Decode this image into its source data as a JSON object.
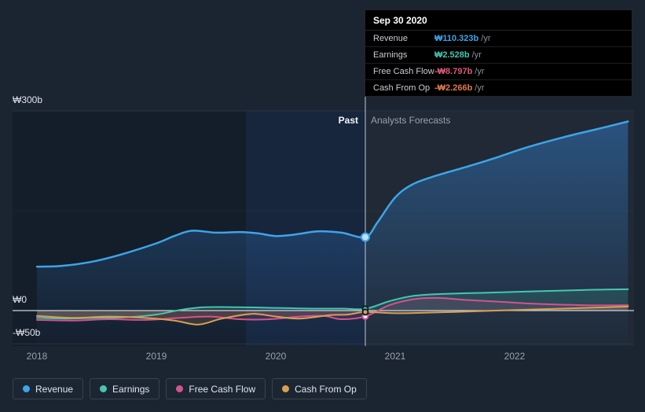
{
  "tooltip": {
    "date": "Sep 30 2020",
    "rows": [
      {
        "label": "Revenue",
        "value": "₩110.323b",
        "suffix": "/yr",
        "value_color": "#3da5e8"
      },
      {
        "label": "Earnings",
        "value": "₩2.528b",
        "suffix": "/yr",
        "value_color": "#45c6b1"
      },
      {
        "label": "Free Cash Flow",
        "value": "-₩8.797b",
        "suffix": "/yr",
        "value_color": "#e0587a"
      },
      {
        "label": "Cash From Op",
        "value": "-₩2.266b",
        "suffix": "/yr",
        "value_color": "#df7a4a"
      }
    ]
  },
  "legend": [
    {
      "label": "Revenue",
      "color": "#3da5e8"
    },
    {
      "label": "Earnings",
      "color": "#45c6b1"
    },
    {
      "label": "Free Cash Flow",
      "color": "#d4538f"
    },
    {
      "label": "Cash From Op",
      "color": "#d9a050"
    }
  ],
  "chart_data": {
    "type": "line",
    "title": "",
    "x_range": [
      2018,
      2023
    ],
    "ylim": [
      -50,
      300
    ],
    "grid": true,
    "legend_position": "bottom",
    "y_ticks": [
      {
        "value": 300,
        "label": "₩300b"
      },
      {
        "value": 0,
        "label": "₩0"
      },
      {
        "value": -50,
        "label": "-₩50b"
      }
    ],
    "x_ticks": [
      {
        "value": 2018,
        "label": "2018"
      },
      {
        "value": 2019,
        "label": "2019"
      },
      {
        "value": 2020,
        "label": "2020"
      },
      {
        "value": 2021,
        "label": "2021"
      },
      {
        "value": 2022,
        "label": "2022"
      }
    ],
    "divider": {
      "x": 2020.75,
      "past_label": "Past",
      "forecast_label": "Analysts Forecasts"
    },
    "highlight_band": {
      "from": 2019.75,
      "to": 2020.75
    },
    "series": [
      {
        "name": "Revenue",
        "color": "#3da5e8",
        "marker": 110.323,
        "area": "gradient-bottom",
        "x": [
          2018.0,
          2018.2,
          2018.45,
          2018.7,
          2019.0,
          2019.15,
          2019.3,
          2019.5,
          2019.7,
          2019.85,
          2020.0,
          2020.15,
          2020.35,
          2020.55,
          2020.75,
          2020.85,
          2021.0,
          2021.15,
          2021.35,
          2021.6,
          2021.85,
          2022.1,
          2022.4,
          2022.7,
          2022.95
        ],
        "values": [
          66,
          67,
          73,
          84,
          101,
          112,
          120,
          117,
          118,
          116,
          112,
          114,
          119,
          117,
          110.323,
          132,
          170,
          190,
          203,
          216,
          230,
          245,
          260,
          273,
          284
        ]
      },
      {
        "name": "Earnings",
        "color": "#45c6b1",
        "marker": 2.528,
        "area": "zero",
        "x": [
          2018.0,
          2018.25,
          2018.5,
          2018.75,
          2019.0,
          2019.2,
          2019.4,
          2019.7,
          2020.0,
          2020.3,
          2020.55,
          2020.75,
          2020.95,
          2021.15,
          2021.4,
          2021.8,
          2022.2,
          2022.6,
          2022.95
        ],
        "values": [
          -11,
          -12,
          -11,
          -10,
          -6,
          1,
          5,
          5,
          4,
          3,
          3,
          2.528,
          14,
          22,
          25,
          27,
          29,
          31,
          32
        ]
      },
      {
        "name": "Free Cash Flow",
        "color": "#d4538f",
        "marker": -8.797,
        "area": "zero",
        "x": [
          2018.0,
          2018.3,
          2018.6,
          2018.9,
          2019.2,
          2019.45,
          2019.7,
          2019.95,
          2020.2,
          2020.4,
          2020.55,
          2020.75,
          2020.95,
          2021.15,
          2021.35,
          2021.6,
          2021.9,
          2022.2,
          2022.6,
          2022.95
        ],
        "values": [
          -14,
          -15,
          -13,
          -14,
          -11,
          -9,
          -13,
          -13,
          -9,
          -8,
          -13,
          -8.797,
          8,
          17,
          19,
          16,
          13,
          10,
          8,
          8
        ]
      },
      {
        "name": "Cash From Op",
        "color": "#d9a050",
        "marker": -2.266,
        "area": "zero",
        "x": [
          2018.0,
          2018.3,
          2018.6,
          2018.9,
          2019.15,
          2019.35,
          2019.55,
          2019.8,
          2020.0,
          2020.2,
          2020.45,
          2020.6,
          2020.75,
          2021.0,
          2021.3,
          2021.7,
          2022.0,
          2022.4,
          2022.95
        ],
        "values": [
          -8,
          -11,
          -9,
          -11,
          -15,
          -21,
          -12,
          -5,
          -9,
          -12,
          -7,
          -6,
          -2.266,
          -4,
          -3,
          -1,
          1,
          3,
          6
        ]
      }
    ]
  }
}
